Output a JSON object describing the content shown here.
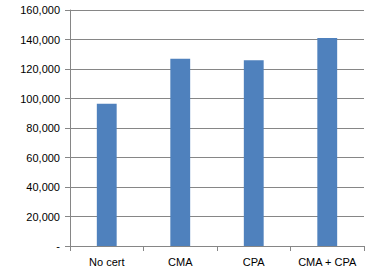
{
  "chart_data": {
    "type": "bar",
    "categories": [
      "No cert",
      "CMA",
      "CPA",
      "CMA + CPA"
    ],
    "values": [
      96500,
      127000,
      126000,
      141000
    ],
    "color": "#4f81bd",
    "ylim": [
      0,
      160000
    ],
    "yticks": [
      {
        "value": 0,
        "label": "-"
      },
      {
        "value": 20000,
        "label": "20,000"
      },
      {
        "value": 40000,
        "label": "40,000"
      },
      {
        "value": 60000,
        "label": "60,000"
      },
      {
        "value": 80000,
        "label": "80,000"
      },
      {
        "value": 100000,
        "label": "100,000"
      },
      {
        "value": 120000,
        "label": "120,000"
      },
      {
        "value": 140000,
        "label": "140,000"
      },
      {
        "value": 160000,
        "label": "160,000"
      }
    ],
    "grid": true
  }
}
